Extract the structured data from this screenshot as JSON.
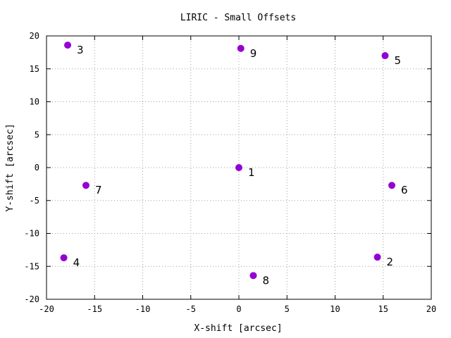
{
  "chart_data": {
    "type": "scatter",
    "title": "LIRIC - Small Offsets",
    "xlabel": "X-shift [arcsec]",
    "ylabel": "Y-shift [arcsec]",
    "xlim": [
      -20,
      20
    ],
    "ylim": [
      -20,
      20
    ],
    "xticks": [
      -20,
      -15,
      -10,
      -5,
      0,
      5,
      10,
      15,
      20
    ],
    "yticks": [
      -20,
      -15,
      -10,
      -5,
      0,
      5,
      10,
      15,
      20
    ],
    "grid": true,
    "marker_color": "#9400d3",
    "points": [
      {
        "label": "1",
        "x": 0.0,
        "y": 0.0
      },
      {
        "label": "2",
        "x": 14.4,
        "y": -13.6
      },
      {
        "label": "3",
        "x": -17.8,
        "y": 18.6
      },
      {
        "label": "4",
        "x": -18.2,
        "y": -13.7
      },
      {
        "label": "5",
        "x": 15.2,
        "y": 17.0
      },
      {
        "label": "6",
        "x": 15.9,
        "y": -2.7
      },
      {
        "label": "7",
        "x": -15.9,
        "y": -2.7
      },
      {
        "label": "8",
        "x": 1.5,
        "y": -16.4
      },
      {
        "label": "9",
        "x": 0.2,
        "y": 18.1
      }
    ]
  }
}
